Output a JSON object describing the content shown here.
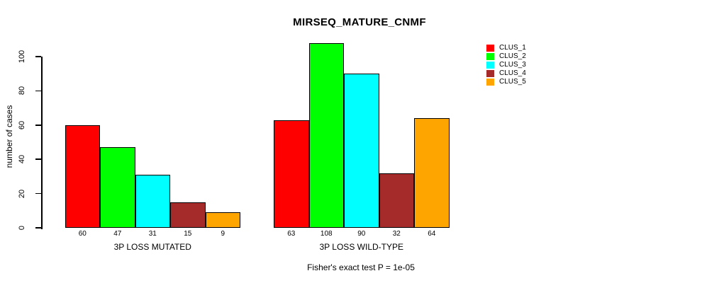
{
  "title": "MIRSEQ_MATURE_CNMF",
  "footer": "Fisher's exact test P = 1e-05",
  "chart_data": {
    "type": "bar",
    "title": "MIRSEQ_MATURE_CNMF",
    "ylabel": "number of cases",
    "xlabel": "",
    "categories": [
      "3P LOSS MUTATED",
      "3P LOSS WILD-TYPE"
    ],
    "series": [
      {
        "name": "CLUS_1",
        "color": "#FF0000",
        "values": [
          60,
          63
        ]
      },
      {
        "name": "CLUS_2",
        "color": "#00FF00",
        "values": [
          47,
          108
        ]
      },
      {
        "name": "CLUS_3",
        "color": "#00FFFF",
        "values": [
          31,
          90
        ]
      },
      {
        "name": "CLUS_4",
        "color": "#A52A2A",
        "values": [
          15,
          32
        ]
      },
      {
        "name": "CLUS_5",
        "color": "#FFA500",
        "values": [
          9,
          64
        ]
      }
    ],
    "bar_value_labels": [
      [
        "60",
        "47",
        "31",
        "15",
        "9"
      ],
      [
        "63",
        "108",
        "90",
        "32",
        "64"
      ]
    ],
    "yticks": [
      0,
      20,
      40,
      60,
      80,
      100
    ],
    "ylim": [
      0,
      100
    ],
    "grid": false,
    "legend_position": "top-right",
    "legend_entries": [
      "CLUS_1",
      "CLUS_2",
      "CLUS_3",
      "CLUS_4",
      "CLUS_5"
    ],
    "annotation": "Fisher's exact test P = 1e-05"
  }
}
